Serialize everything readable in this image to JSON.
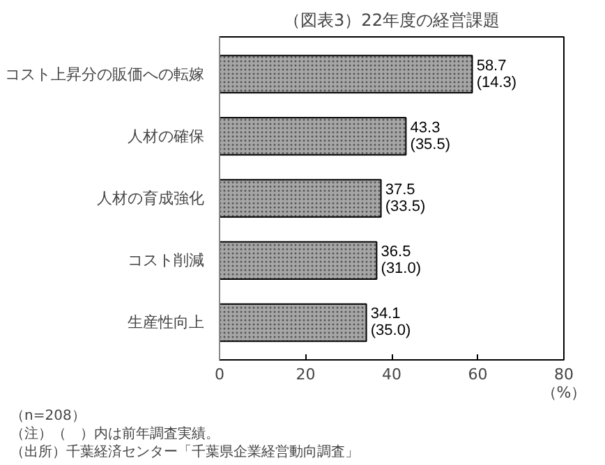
{
  "chart_data": {
    "type": "bar",
    "orientation": "horizontal",
    "title": "（図表3）22年度の経営課題",
    "categories": [
      "コスト上昇分の販価への転嫁",
      "人材の確保",
      "人材の育成強化",
      "コスト削減",
      "生産性向上"
    ],
    "values": [
      58.7,
      43.3,
      37.5,
      36.5,
      34.1
    ],
    "value_labels": [
      "58.7\n(14.3)",
      "43.3\n(35.5)",
      "37.5\n(33.5)",
      "36.5\n(31.0)",
      "34.1\n(35.0)"
    ],
    "color": "#a6a6a6",
    "xlim": [
      0,
      80
    ],
    "xticks": [
      0,
      20,
      40,
      60,
      80
    ],
    "xlabel": "（%）",
    "grid": false,
    "annotations": [
      "（n=208）",
      "（注）（　）内は前年調査実績。",
      "（出所）千葉経済センター「千葉県企業経営動向調査」"
    ]
  }
}
